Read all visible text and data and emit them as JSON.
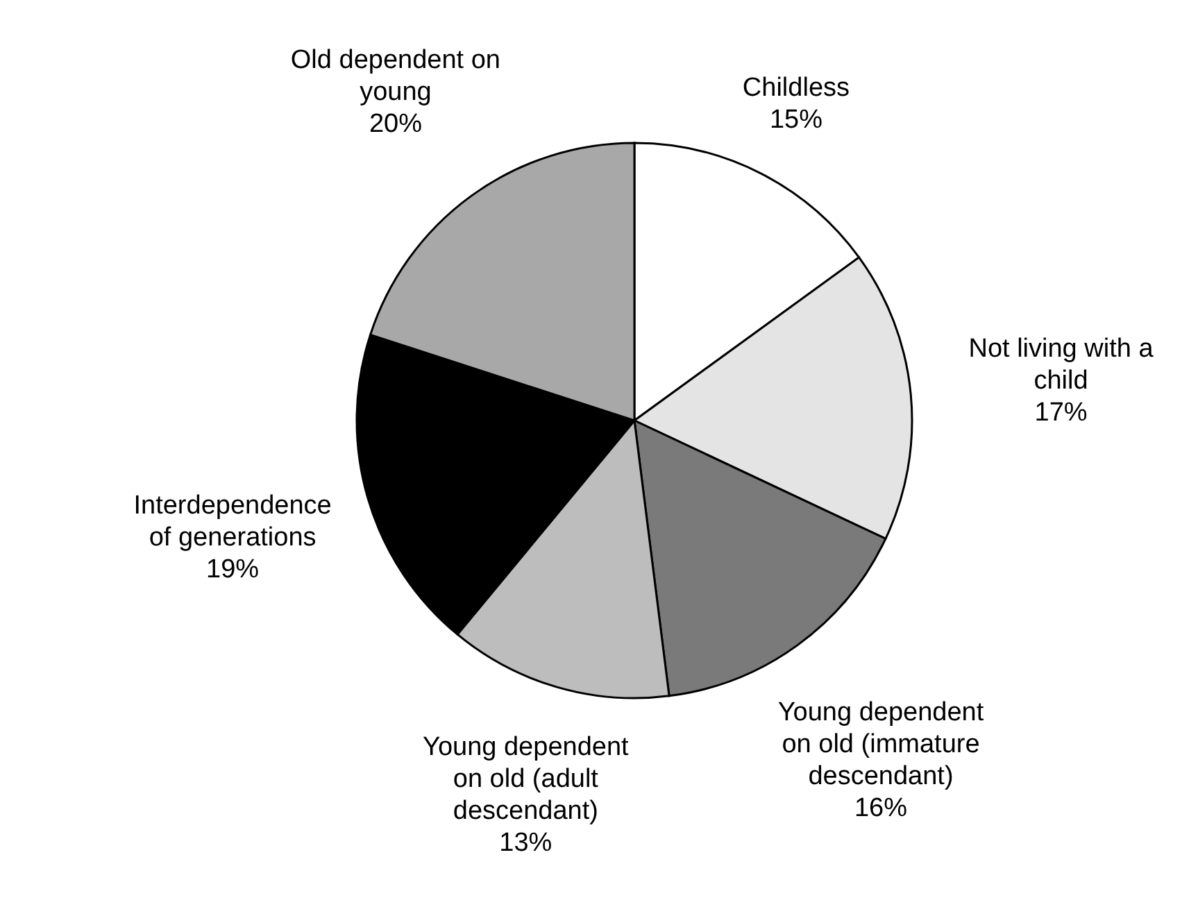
{
  "chart_data": {
    "type": "pie",
    "categories": [
      "Childless",
      "Not living with a child",
      "Young dependent on old (immature descendant)",
      "Young dependent on old (adult descendant)",
      "Interdependence of generations",
      "Old dependent on young"
    ],
    "values": [
      15,
      17,
      16,
      13,
      19,
      20
    ],
    "value_labels": [
      "15%",
      "17%",
      "16%",
      "13%",
      "19%",
      "20%"
    ],
    "colors": [
      "#ffffff",
      "#e4e4e4",
      "#7a7a7a",
      "#bdbdbd",
      "#000000",
      "#a8a8a8"
    ]
  }
}
